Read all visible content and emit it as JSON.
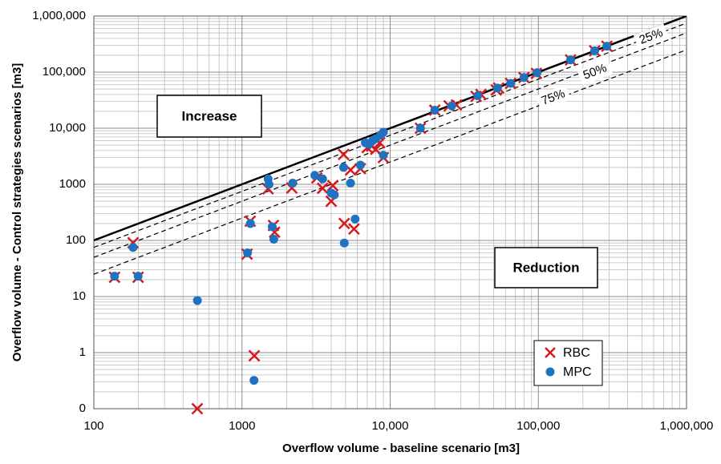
{
  "chart_data": {
    "type": "scatter",
    "log_x": true,
    "log_y": true,
    "grid": true,
    "x_label": "Overflow volume - baseline scenario [m3]",
    "y_label": "Overflow volume - Control strategies scenarios [m3]",
    "xlim": [
      100,
      1000000
    ],
    "xticks": [
      100,
      1000,
      {
        "value": 10000,
        "label": "10,000"
      },
      {
        "value": 100000,
        "label": "100,000"
      },
      {
        "value": 1000000,
        "label": "1,000,000"
      }
    ],
    "ylim": [
      0.1,
      1000000
    ],
    "yticks": [
      {
        "value": 0.1,
        "label": "0"
      },
      1,
      10,
      100,
      1000,
      {
        "value": 10000,
        "label": "10,000"
      },
      {
        "value": 100000,
        "label": "100,000"
      },
      {
        "value": 1000000,
        "label": "1,000,000"
      }
    ],
    "reference_lines": [
      {
        "factor": 1
      },
      {
        "factor": 0.75,
        "label": "25%"
      },
      {
        "factor": 0.5,
        "label": "50%"
      },
      {
        "factor": 0.25,
        "label": "75%"
      }
    ],
    "annotations": [
      "Increase",
      "Reduction"
    ],
    "legend": "lower right",
    "series": [
      {
        "name": "RBC",
        "color": "#d7191c",
        "marker": "x",
        "x": [
          138,
          184,
          199,
          499,
          1082,
          1136,
          1210,
          1500,
          1630,
          1660,
          2170,
          3200,
          3500,
          4000,
          4100,
          4850,
          4900,
          5400,
          5700,
          6300,
          7000,
          7500,
          8000,
          8500,
          9000,
          16000,
          20000,
          25000,
          28000,
          38000,
          41000,
          52000,
          54000,
          65000,
          80000,
          97000,
          165000,
          240000,
          290000
        ],
        "values": [
          22,
          91,
          22,
          0.1,
          57,
          220,
          0.88,
          830,
          185,
          140,
          860,
          1300,
          850,
          500,
          950,
          3400,
          200,
          1800,
          160,
          1900,
          4500,
          4800,
          4200,
          5500,
          3000,
          10000,
          21000,
          25000,
          26000,
          37000,
          40000,
          48000,
          52000,
          63000,
          80000,
          95000,
          165000,
          240000,
          290000
        ]
      },
      {
        "name": "MPC",
        "color": "#1f72c0",
        "marker": "circle",
        "x": [
          138,
          184,
          199,
          500,
          1090,
          1140,
          1205,
          1500,
          1520,
          1600,
          1640,
          2200,
          3100,
          3500,
          4000,
          4200,
          4850,
          4900,
          5400,
          5800,
          6300,
          6800,
          7200,
          7600,
          8000,
          8600,
          9000,
          9000,
          16000,
          20000,
          26000,
          39000,
          53000,
          65000,
          80000,
          98000,
          165000,
          240000,
          290000
        ],
        "values": [
          23,
          75,
          23,
          8.5,
          60,
          200,
          0.32,
          1250,
          1000,
          175,
          105,
          1050,
          1450,
          1250,
          700,
          650,
          2000,
          90,
          1050,
          240,
          2200,
          5500,
          5200,
          6000,
          6500,
          7500,
          8500,
          3300,
          10000,
          21000,
          25000,
          38000,
          52000,
          63000,
          80000,
          98000,
          165000,
          240000,
          290000
        ]
      }
    ]
  }
}
